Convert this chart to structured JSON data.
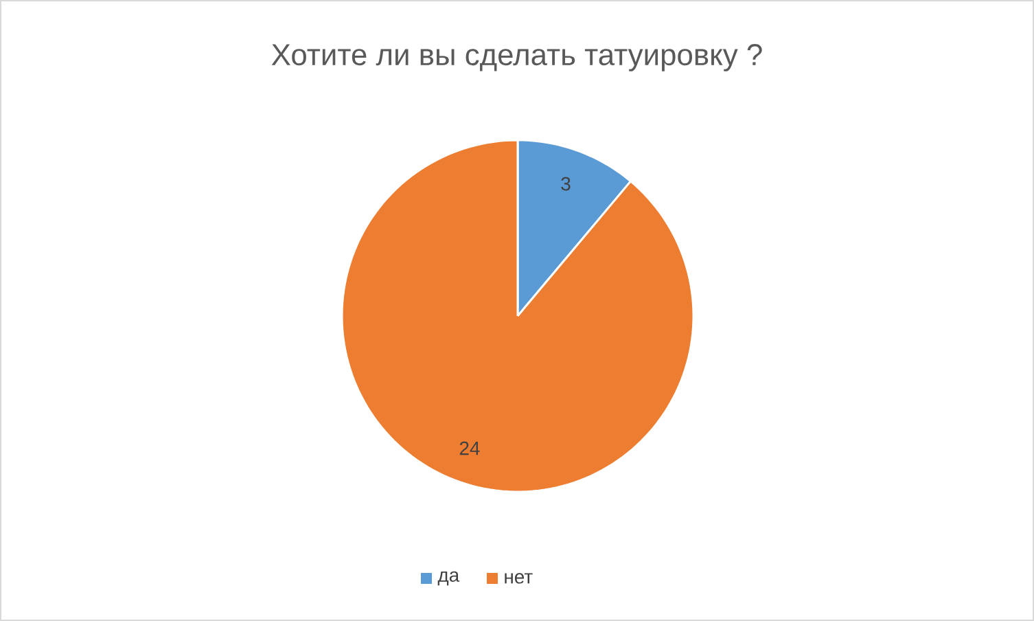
{
  "chart_data": {
    "type": "pie",
    "title": "Хотите ли вы сделать татуировку ?",
    "categories": [
      "да",
      "нет"
    ],
    "values": [
      3,
      24
    ],
    "colors": [
      "#5b9bd5",
      "#ed7d31"
    ],
    "data_labels": true,
    "legend": "bottom"
  }
}
